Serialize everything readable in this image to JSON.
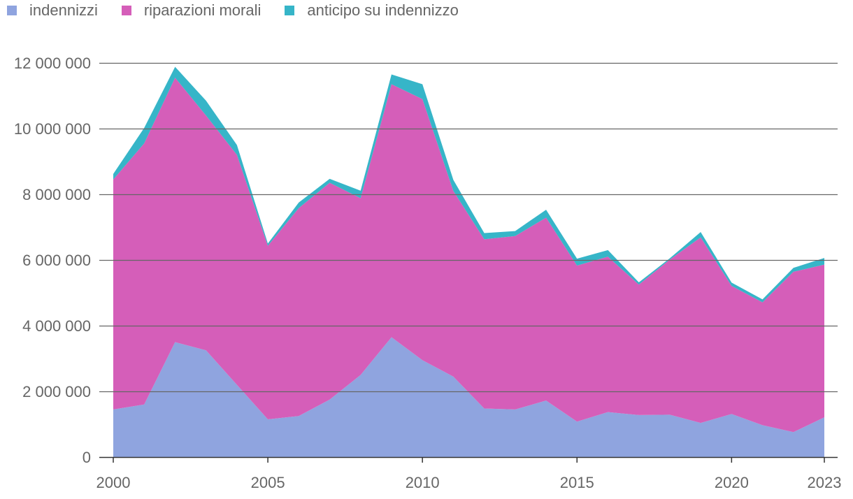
{
  "chart_data": {
    "type": "area",
    "stacked": true,
    "title": "",
    "xlabel": "",
    "ylabel": "",
    "x": [
      2000,
      2001,
      2002,
      2003,
      2004,
      2005,
      2006,
      2007,
      2008,
      2009,
      2010,
      2011,
      2012,
      2013,
      2014,
      2015,
      2016,
      2017,
      2018,
      2019,
      2020,
      2021,
      2022,
      2023
    ],
    "xticks": [
      "2000",
      "2005",
      "2010",
      "2015",
      "2020",
      "2023"
    ],
    "yticks": [
      "0",
      "2 000 000",
      "4 000 000",
      "6 000 000",
      "8 000 000",
      "10 000 000",
      "12 000 000"
    ],
    "ylim": [
      0,
      12000000
    ],
    "legend_position": "top-left",
    "series": [
      {
        "name": "indennizzi",
        "color": "#8fa4df",
        "values": [
          1450000,
          1600000,
          3500000,
          3250000,
          2200000,
          1150000,
          1250000,
          1750000,
          2500000,
          3650000,
          2950000,
          2450000,
          1480000,
          1450000,
          1720000,
          1080000,
          1370000,
          1280000,
          1290000,
          1040000,
          1310000,
          970000,
          760000,
          1210000
        ]
      },
      {
        "name": "riparazioni morali",
        "color": "#d55eb9",
        "values": [
          7000000,
          7950000,
          8050000,
          7150000,
          7000000,
          5280000,
          6330000,
          6600000,
          5380000,
          7700000,
          7950000,
          5650000,
          5150000,
          5280000,
          5570000,
          4750000,
          4730000,
          3970000,
          4720000,
          5650000,
          3900000,
          3740000,
          4880000,
          4650000
        ]
      },
      {
        "name": "anticipo su indennizzo",
        "color": "#36b5c8",
        "values": [
          170000,
          470000,
          330000,
          450000,
          300000,
          70000,
          170000,
          120000,
          230000,
          300000,
          450000,
          340000,
          190000,
          150000,
          240000,
          210000,
          200000,
          70000,
          40000,
          160000,
          100000,
          90000,
          120000,
          200000
        ]
      }
    ]
  }
}
